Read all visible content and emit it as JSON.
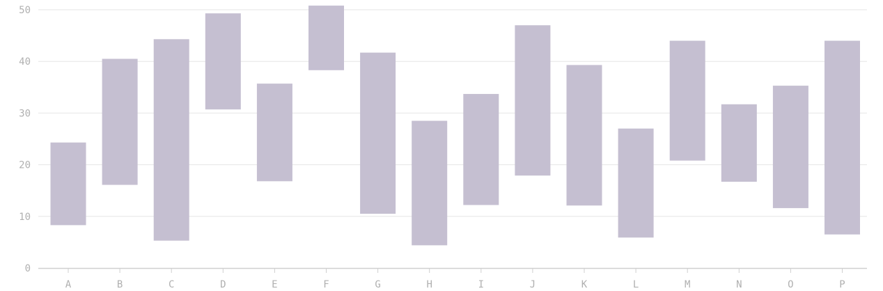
{
  "chart_data": {
    "type": "bar",
    "subtype": "floating-range",
    "title": "",
    "xlabel": "",
    "ylabel": "",
    "ylim": [
      0,
      50
    ],
    "yticks": [
      0,
      10,
      20,
      30,
      40,
      50
    ],
    "grid": "horizontal",
    "legend": "none",
    "bar_color": "#c5bfd1",
    "categories": [
      "A",
      "B",
      "C",
      "D",
      "E",
      "F",
      "G",
      "H",
      "I",
      "J",
      "K",
      "L",
      "M",
      "N",
      "O",
      "P"
    ],
    "low": [
      8.3,
      16.1,
      5.3,
      30.7,
      16.8,
      38.3,
      10.5,
      4.4,
      12.2,
      17.9,
      12.1,
      5.9,
      20.8,
      16.7,
      11.6,
      6.5
    ],
    "high": [
      24.3,
      40.5,
      44.3,
      49.3,
      35.7,
      51.0,
      41.7,
      28.5,
      33.7,
      47.0,
      39.3,
      27.0,
      44.0,
      31.7,
      35.3,
      44.0
    ]
  }
}
